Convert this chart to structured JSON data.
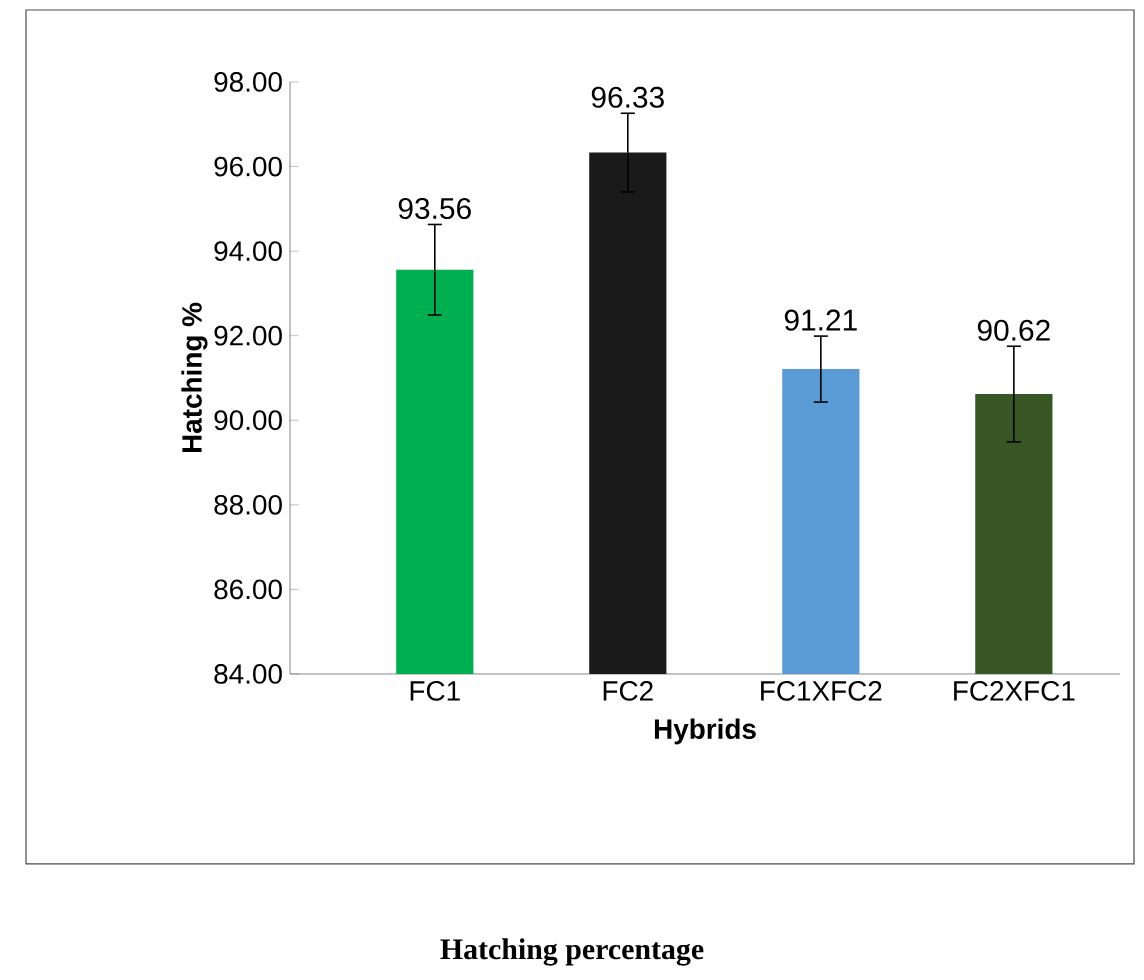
{
  "chart_data": {
    "type": "bar",
    "title": "Hatching percentage",
    "xlabel": "Hybrids",
    "ylabel": "Hatching %",
    "categories": [
      "FC1",
      "FC2",
      "FC1XFC2",
      "FC2XFC1"
    ],
    "values": [
      93.56,
      96.33,
      91.21,
      90.62
    ],
    "errors": [
      1.07,
      0.93,
      0.78,
      1.13
    ],
    "value_labels": [
      "93.56",
      "96.33",
      "91.21",
      "90.62"
    ],
    "colors": [
      "#00b050",
      "#1a1a1a",
      "#5b9bd5",
      "#375623"
    ],
    "ylim": [
      84,
      98
    ],
    "yticks": [
      {
        "value": 84,
        "label": "84.00"
      },
      {
        "value": 86,
        "label": "86.00"
      },
      {
        "value": 88,
        "label": "88.00"
      },
      {
        "value": 90,
        "label": "90.00"
      },
      {
        "value": 92,
        "label": "92.00"
      },
      {
        "value": 94,
        "label": "94.00"
      },
      {
        "value": 96,
        "label": "96.00"
      },
      {
        "value": 98,
        "label": "98.00"
      }
    ],
    "grid": false
  }
}
